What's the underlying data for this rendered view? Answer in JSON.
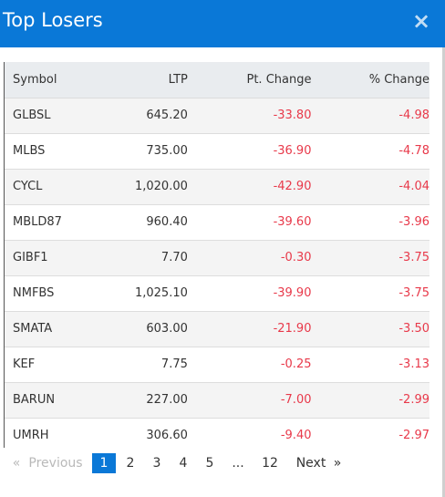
{
  "modal": {
    "title": "Top Losers",
    "close_label": "×"
  },
  "table": {
    "headers": {
      "symbol": "Symbol",
      "ltp": "LTP",
      "pt_change": "Pt. Change",
      "pct_change": "% Change"
    },
    "rows": [
      {
        "symbol": "GLBSL",
        "ltp": "645.20",
        "pt_change": "-33.80",
        "pct_change": "-4.98"
      },
      {
        "symbol": "MLBS",
        "ltp": "735.00",
        "pt_change": "-36.90",
        "pct_change": "-4.78"
      },
      {
        "symbol": "CYCL",
        "ltp": "1,020.00",
        "pt_change": "-42.90",
        "pct_change": "-4.04"
      },
      {
        "symbol": "MBLD87",
        "ltp": "960.40",
        "pt_change": "-39.60",
        "pct_change": "-3.96"
      },
      {
        "symbol": "GIBF1",
        "ltp": "7.70",
        "pt_change": "-0.30",
        "pct_change": "-3.75"
      },
      {
        "symbol": "NMFBS",
        "ltp": "1,025.10",
        "pt_change": "-39.90",
        "pct_change": "-3.75"
      },
      {
        "symbol": "SMATA",
        "ltp": "603.00",
        "pt_change": "-21.90",
        "pct_change": "-3.50"
      },
      {
        "symbol": "KEF",
        "ltp": "7.75",
        "pt_change": "-0.25",
        "pct_change": "-3.13"
      },
      {
        "symbol": "BARUN",
        "ltp": "227.00",
        "pt_change": "-7.00",
        "pct_change": "-2.99"
      },
      {
        "symbol": "UMRH",
        "ltp": "306.60",
        "pt_change": "-9.40",
        "pct_change": "-2.97"
      }
    ]
  },
  "pagination": {
    "prev_arrow": "«",
    "previous": "Previous",
    "pages": [
      "1",
      "2",
      "3",
      "4",
      "5"
    ],
    "ellipsis": "...",
    "last_page": "12",
    "next": "Next",
    "next_arrow": "»",
    "active_page": "1"
  },
  "colors": {
    "header_bg": "#0a78d7",
    "negative": "#e8394a",
    "active_page": "#0a78d7"
  }
}
